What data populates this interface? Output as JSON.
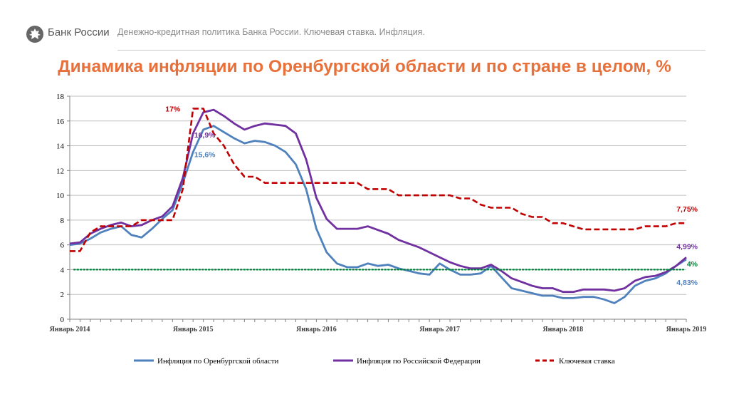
{
  "header": {
    "logo_text": "Банк России",
    "subtitle": "Денежно-кредитная политика Банка России. Ключевая ставка. Инфляция."
  },
  "title": "Динамика инфляции по Оренбургской области и по стране в целом, %",
  "colors": {
    "accent": "#e8703a",
    "orenburg": "#4f81bd",
    "russia": "#7030a0",
    "key_rate": "#c00000",
    "target": "#00803a",
    "grid": "#bfbfbf"
  },
  "chart_data": {
    "type": "line",
    "title": "Динамика инфляции по Оренбургской области и по стране в целом, %",
    "xlabel": "",
    "ylabel": "",
    "ylim": [
      0,
      18
    ],
    "yticks": [
      0,
      2,
      4,
      6,
      8,
      10,
      12,
      14,
      16,
      18
    ],
    "x_count": 61,
    "x_tick_labels": [
      {
        "index": 0,
        "label": "Январь 2014"
      },
      {
        "index": 12,
        "label": "Январь 2015"
      },
      {
        "index": 24,
        "label": "Январь 2016"
      },
      {
        "index": 36,
        "label": "Январь 2017"
      },
      {
        "index": 48,
        "label": "Январь 2018"
      },
      {
        "index": 60,
        "label": "Январь 2019"
      }
    ],
    "series": [
      {
        "name": "Инфляция по Оренбургской области",
        "style": "solid",
        "values": [
          6.0,
          6.1,
          6.5,
          7.0,
          7.3,
          7.5,
          6.8,
          6.6,
          7.3,
          8.1,
          8.8,
          11.0,
          13.5,
          15.3,
          15.6,
          15.1,
          14.6,
          14.2,
          14.4,
          14.3,
          14.0,
          13.5,
          12.5,
          10.5,
          7.3,
          5.4,
          4.5,
          4.2,
          4.2,
          4.5,
          4.3,
          4.4,
          4.1,
          3.9,
          3.7,
          3.6,
          4.5,
          4.0,
          3.6,
          3.6,
          3.7,
          4.3,
          3.4,
          2.5,
          2.3,
          2.1,
          1.9,
          1.9,
          1.7,
          1.7,
          1.8,
          1.8,
          1.6,
          1.3,
          1.8,
          2.7,
          3.1,
          3.3,
          3.7,
          4.3,
          4.83
        ]
      },
      {
        "name": "Инфляция по Российской Федерации",
        "style": "solid",
        "values": [
          6.1,
          6.2,
          6.9,
          7.3,
          7.6,
          7.8,
          7.5,
          7.6,
          8.0,
          8.3,
          9.1,
          11.4,
          15.0,
          16.7,
          16.9,
          16.4,
          15.8,
          15.3,
          15.6,
          15.8,
          15.7,
          15.6,
          15.0,
          12.9,
          9.8,
          8.1,
          7.3,
          7.3,
          7.3,
          7.5,
          7.2,
          6.9,
          6.4,
          6.1,
          5.8,
          5.4,
          5.0,
          4.6,
          4.3,
          4.1,
          4.1,
          4.4,
          3.9,
          3.3,
          3.0,
          2.7,
          2.5,
          2.5,
          2.2,
          2.2,
          2.4,
          2.4,
          2.4,
          2.3,
          2.5,
          3.1,
          3.4,
          3.5,
          3.8,
          4.3,
          4.99
        ]
      },
      {
        "name": "Ключевая ставка",
        "style": "dashed",
        "values": [
          5.5,
          5.5,
          7.0,
          7.5,
          7.5,
          7.5,
          7.5,
          8.0,
          8.0,
          8.0,
          8.0,
          10.5,
          17.0,
          17.0,
          15.0,
          14.0,
          12.5,
          11.5,
          11.5,
          11.0,
          11.0,
          11.0,
          11.0,
          11.0,
          11.0,
          11.0,
          11.0,
          11.0,
          11.0,
          10.5,
          10.5,
          10.5,
          10.0,
          10.0,
          10.0,
          10.0,
          10.0,
          10.0,
          9.75,
          9.75,
          9.25,
          9.0,
          9.0,
          9.0,
          8.5,
          8.25,
          8.25,
          7.75,
          7.75,
          7.5,
          7.25,
          7.25,
          7.25,
          7.25,
          7.25,
          7.25,
          7.5,
          7.5,
          7.5,
          7.75,
          7.75
        ]
      },
      {
        "name": "Цель по инфляции",
        "style": "dotted",
        "values": [
          4,
          4
        ]
      }
    ],
    "annotations": [
      {
        "text": "17%",
        "x_index": 11,
        "y": 17.0,
        "series": "Ключевая ставка"
      },
      {
        "text": "16,9%",
        "x_index": 13,
        "y": 14.9,
        "series": "Инфляция по Российской Федерации"
      },
      {
        "text": "15,6%",
        "x_index": 13,
        "y": 13.3,
        "series": "Инфляция по Оренбургской области"
      },
      {
        "text": "7,75%",
        "x_index": 60,
        "y": 8.9,
        "series": "Ключевая ставка"
      },
      {
        "text": "4,99%",
        "x_index": 60,
        "y": 5.9,
        "series": "Инфляция по Российской Федерации"
      },
      {
        "text": "4%",
        "x_index": 60,
        "y": 4.5,
        "series": "Цель по инфляции"
      },
      {
        "text": "4,83%",
        "x_index": 60,
        "y": 3.0,
        "series": "Инфляция по Оренбургской области"
      }
    ],
    "legend": [
      {
        "label": "Инфляция по Оренбургской области",
        "style": "solid",
        "color_key": "orenburg"
      },
      {
        "label": "Инфляция по Российской Федерации",
        "style": "solid",
        "color_key": "russia"
      },
      {
        "label": "Ключевая ставка",
        "style": "dashed",
        "color_key": "key_rate"
      }
    ],
    "legend_position": "bottom",
    "grid": true
  }
}
